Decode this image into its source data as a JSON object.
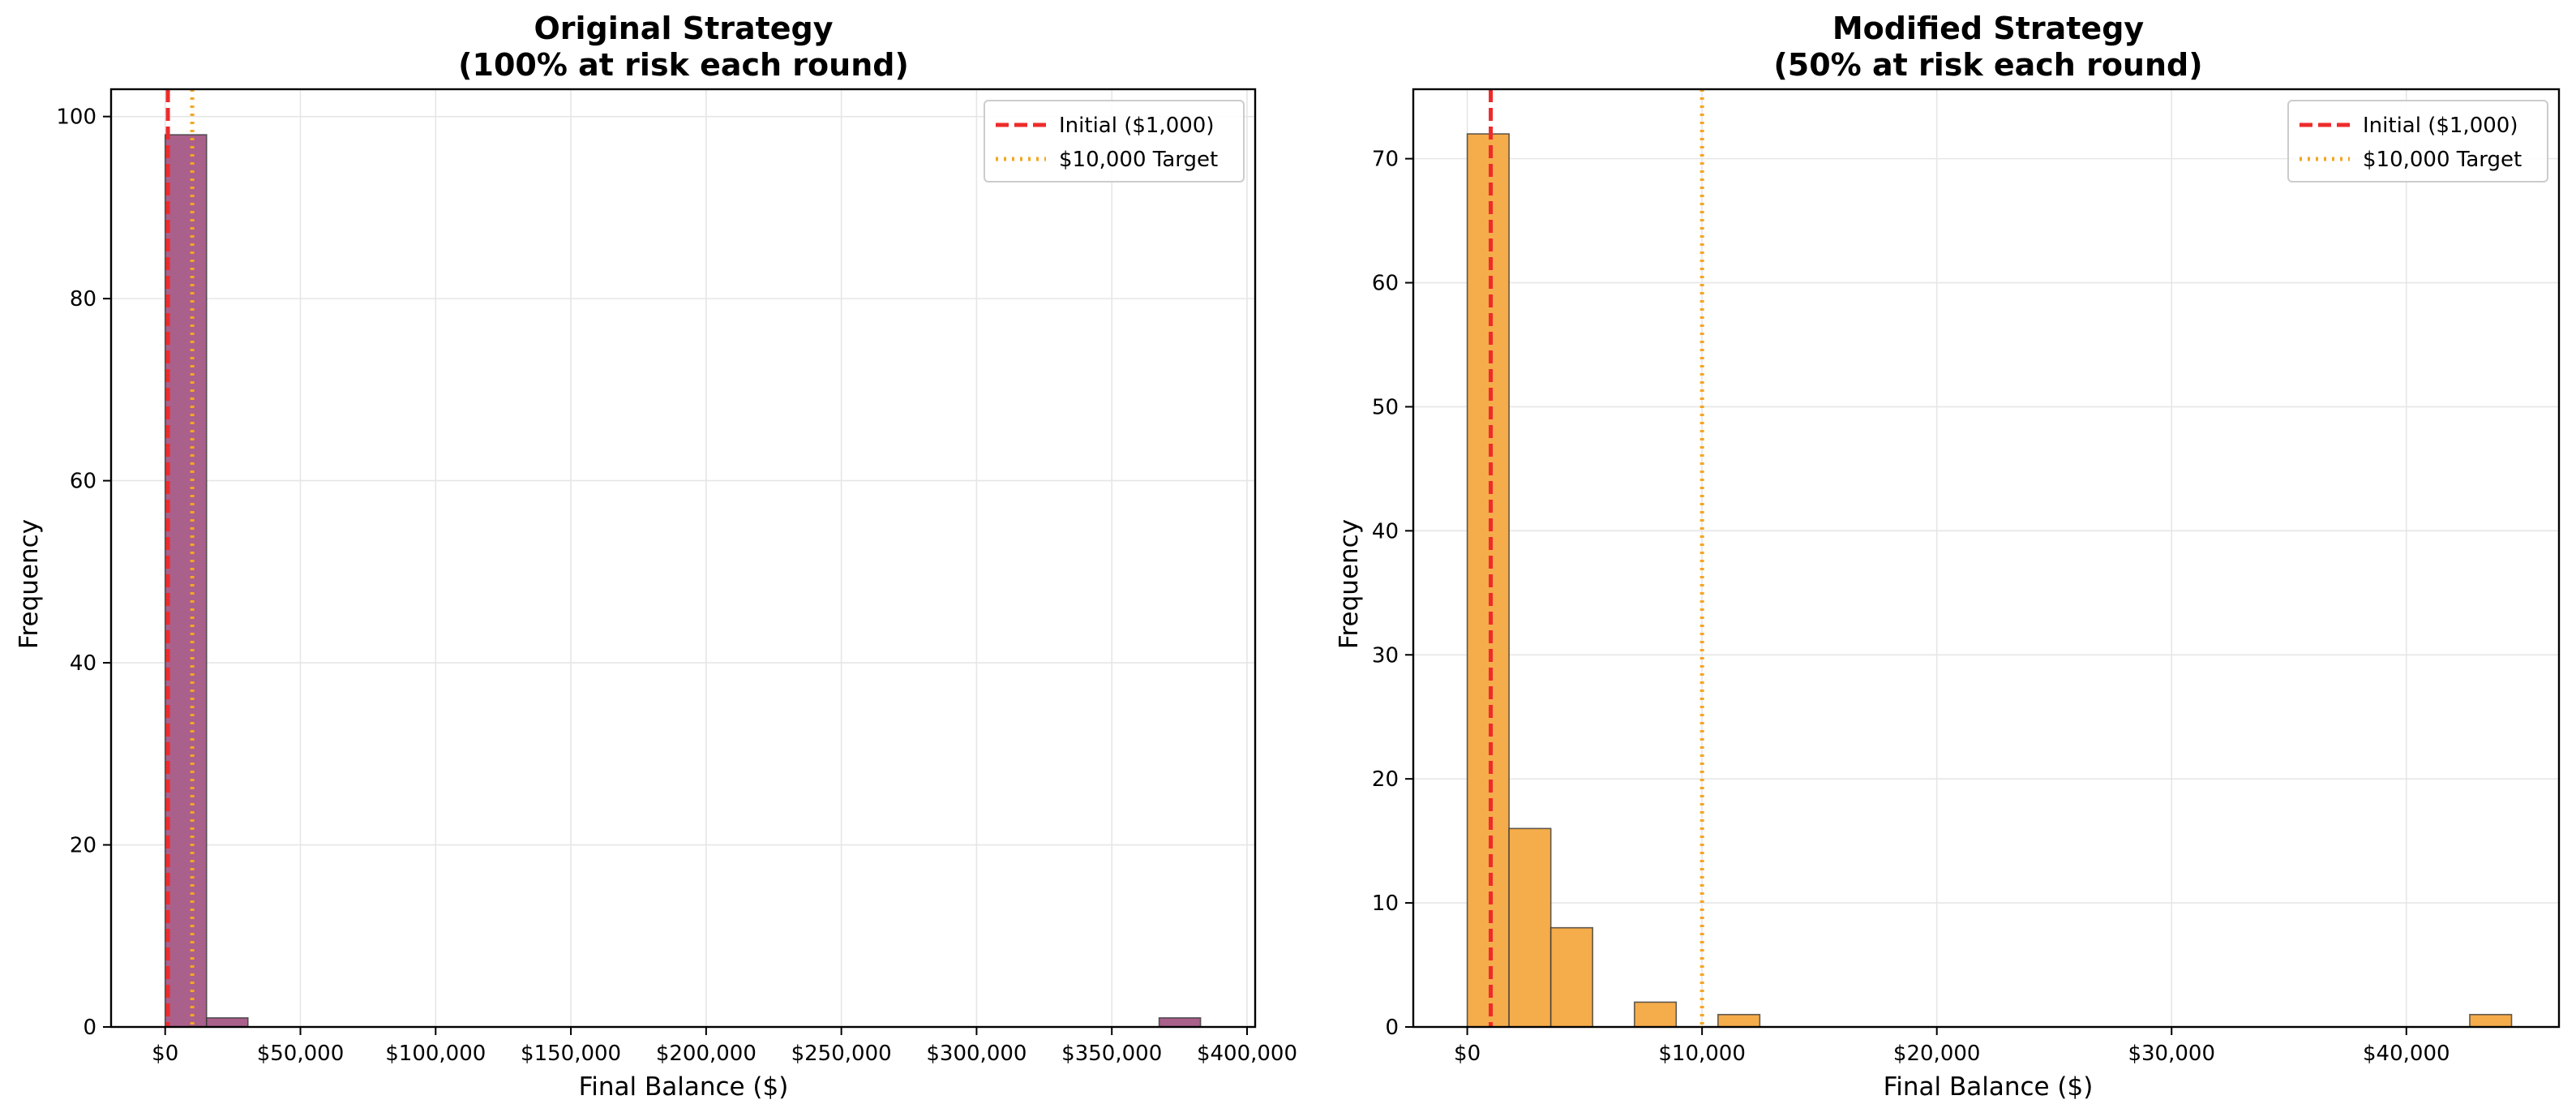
{
  "chart_data": [
    {
      "type": "histogram",
      "title_line1": "Original Strategy",
      "title_line2": "(100% at risk each round)",
      "xlabel": "Final Balance ($)",
      "ylabel": "Frequency",
      "xlim": [
        -20000,
        403000
      ],
      "ylim": [
        0,
        103
      ],
      "x_ticks": [
        0,
        50000,
        100000,
        150000,
        200000,
        250000,
        300000,
        350000,
        400000
      ],
      "x_tick_labels": [
        "$0",
        "$50,000",
        "$100,000",
        "$150,000",
        "$200,000",
        "$250,000",
        "$300,000",
        "$350,000",
        "$400,000"
      ],
      "y_ticks": [
        0,
        20,
        40,
        60,
        80,
        100
      ],
      "y_tick_labels": [
        "0",
        "20",
        "40",
        "60",
        "80",
        "100"
      ],
      "bar_color": "#a9608a",
      "bins": [
        {
          "x0": 0,
          "x1": 15300,
          "count": 98
        },
        {
          "x0": 15300,
          "x1": 30600,
          "count": 1
        },
        {
          "x0": 367500,
          "x1": 382800,
          "count": 1
        }
      ],
      "reference_lines": [
        {
          "x": 1000,
          "label": "Initial ($1,000)",
          "color": "#ee2b2b",
          "style": "dashed"
        },
        {
          "x": 10000,
          "label": "$10,000 Target",
          "color": "#f5a623",
          "style": "dotted"
        }
      ],
      "grid": true,
      "legend_position": "top-right"
    },
    {
      "type": "histogram",
      "title_line1": "Modified Strategy",
      "title_line2": "(50% at risk each round)",
      "xlabel": "Final Balance ($)",
      "ylabel": "Frequency",
      "xlim": [
        -2300,
        46500
      ],
      "ylim": [
        0,
        75.6
      ],
      "x_ticks": [
        0,
        10000,
        20000,
        30000,
        40000
      ],
      "x_tick_labels": [
        "$0",
        "$10,000",
        "$20,000",
        "$30,000",
        "$40,000"
      ],
      "y_ticks": [
        0,
        10,
        20,
        30,
        40,
        50,
        60,
        70
      ],
      "y_tick_labels": [
        "0",
        "10",
        "20",
        "30",
        "40",
        "50",
        "60",
        "70"
      ],
      "bar_color": "#f5ac4a",
      "bins": [
        {
          "x0": 0,
          "x1": 1780,
          "count": 72
        },
        {
          "x0": 1780,
          "x1": 3560,
          "count": 16
        },
        {
          "x0": 3560,
          "x1": 5340,
          "count": 8
        },
        {
          "x0": 7120,
          "x1": 8900,
          "count": 2
        },
        {
          "x0": 10680,
          "x1": 12460,
          "count": 1
        },
        {
          "x0": 42700,
          "x1": 44480,
          "count": 1
        }
      ],
      "reference_lines": [
        {
          "x": 1000,
          "label": "Initial ($1,000)",
          "color": "#ee2b2b",
          "style": "dashed"
        },
        {
          "x": 10000,
          "label": "$10,000 Target",
          "color": "#f5a623",
          "style": "dotted"
        }
      ],
      "grid": true,
      "legend_position": "top-right"
    }
  ]
}
